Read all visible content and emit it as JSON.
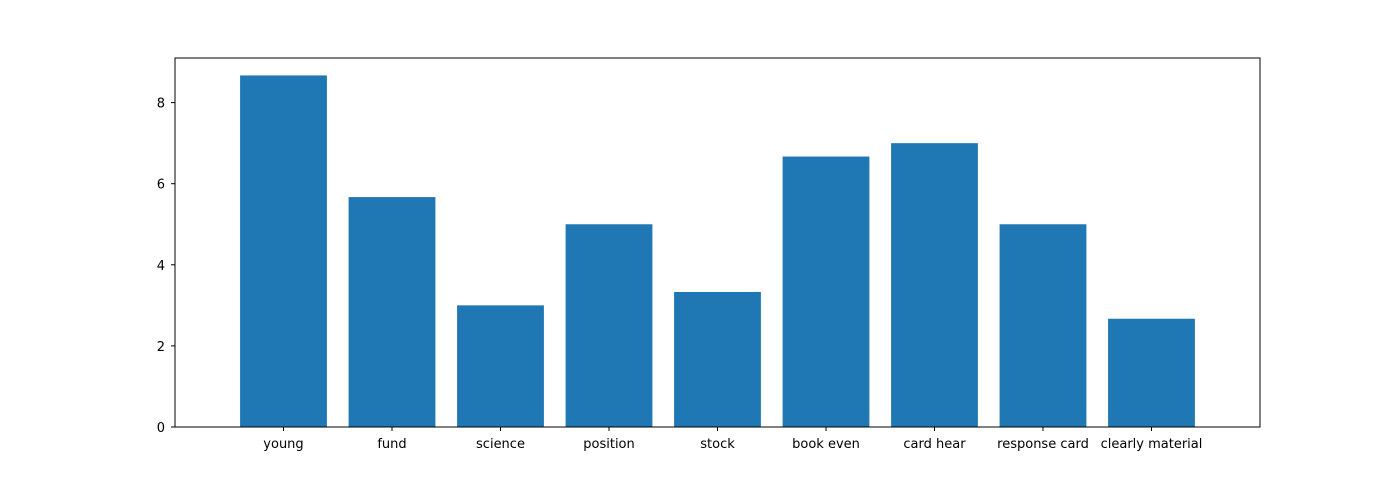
{
  "chart_data": {
    "type": "bar",
    "title": "",
    "xlabel": "",
    "ylabel": "",
    "categories": [
      "young",
      "fund",
      "science",
      "position",
      "stock",
      "book even",
      "card hear",
      "response card",
      "clearly material"
    ],
    "values": [
      8.67,
      5.67,
      3.0,
      5.0,
      3.33,
      6.67,
      7.0,
      5.0,
      2.67
    ],
    "ylim": [
      0,
      9.1
    ],
    "yticks": [
      0,
      2,
      4,
      6,
      8
    ],
    "grid": false,
    "legend": "none",
    "bar_color": "#1f77b4"
  }
}
